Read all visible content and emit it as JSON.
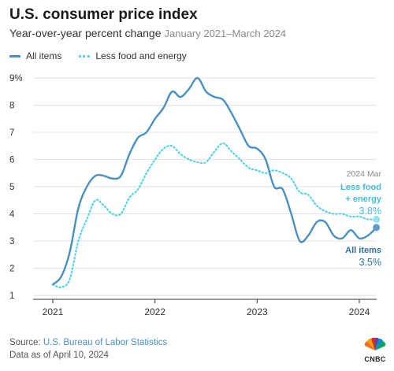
{
  "header": {
    "title": "U.S. consumer price index",
    "subtitle": "Year-over-year percent change",
    "range": "January 2021–March 2024"
  },
  "legend": {
    "all_items": "All items",
    "less_food_energy": "Less food and energy"
  },
  "annotations": {
    "date_label": "2024 Mar",
    "core_label_line1": "Less food",
    "core_label_line2": "+ energy",
    "core_value": "3.8%",
    "all_label": "All items",
    "all_value": "3.5%"
  },
  "footer": {
    "source_prefix": "Source: ",
    "source_name": "U.S. Bureau of Labor Statistics",
    "as_of": "Data as of April 10, 2024",
    "brand": "CNBC"
  },
  "colors": {
    "all_items": "#4a90c2",
    "less_food_energy": "#59d2e8",
    "grid": "#e2e2e2",
    "axis": "#333333"
  },
  "chart_data": {
    "type": "line",
    "title": "U.S. consumer price index",
    "subtitle": "Year-over-year percent change",
    "xlabel": "",
    "ylabel": "",
    "x_start": "2021-01",
    "x_ticks": [
      "2021",
      "2022",
      "2023",
      "2024"
    ],
    "y_ticks": [
      "9%",
      "8",
      "7",
      "6",
      "5",
      "4",
      "3",
      "2",
      "1"
    ],
    "ylim": [
      1,
      9
    ],
    "grid": true,
    "legend_position": "top-left",
    "series": [
      {
        "name": "All items",
        "values": [
          1.4,
          1.7,
          2.6,
          4.2,
          5.0,
          5.4,
          5.4,
          5.3,
          5.4,
          6.2,
          6.8,
          7.0,
          7.5,
          7.9,
          8.5,
          8.3,
          8.6,
          9.0,
          8.5,
          8.3,
          8.2,
          7.7,
          7.1,
          6.5,
          6.4,
          6.0,
          5.0,
          4.9,
          4.0,
          3.0,
          3.2,
          3.7,
          3.7,
          3.2,
          3.1,
          3.4,
          3.1,
          3.2,
          3.5
        ]
      },
      {
        "name": "Less food and energy",
        "values": [
          1.4,
          1.3,
          1.6,
          3.0,
          3.8,
          4.5,
          4.3,
          4.0,
          4.0,
          4.6,
          4.9,
          5.5,
          6.0,
          6.4,
          6.5,
          6.2,
          6.0,
          5.9,
          5.9,
          6.3,
          6.6,
          6.3,
          6.0,
          5.7,
          5.6,
          5.5,
          5.6,
          5.5,
          5.3,
          4.8,
          4.7,
          4.3,
          4.1,
          4.0,
          4.0,
          3.9,
          3.9,
          3.8,
          3.8
        ]
      }
    ]
  }
}
